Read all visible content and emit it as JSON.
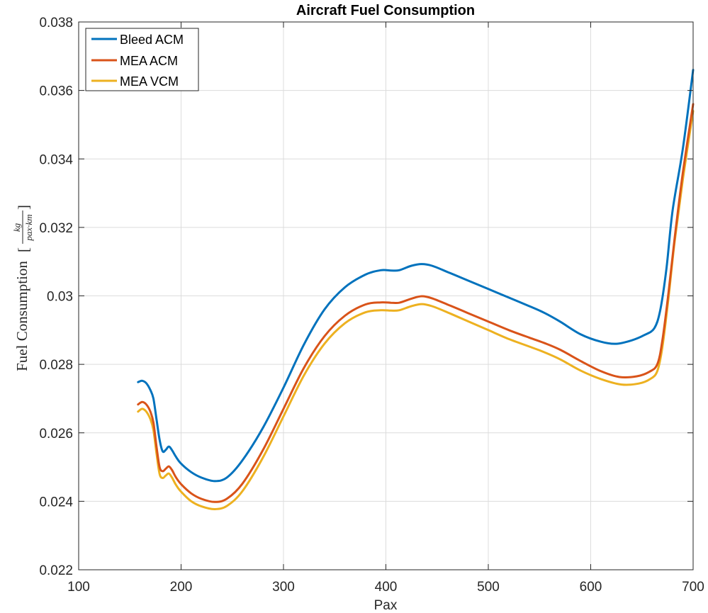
{
  "chart_data": {
    "type": "line",
    "title": "Aircraft Fuel Consumption",
    "xlabel": "Pax",
    "ylabel": {
      "text": "Fuel Consumption",
      "unit_numerator": "kg",
      "unit_denominator": "pax·km"
    },
    "xlim": [
      100,
      700
    ],
    "ylim": [
      0.022,
      0.038
    ],
    "xticks": [
      100,
      200,
      300,
      400,
      500,
      600,
      700
    ],
    "xtick_labels": [
      "100",
      "200",
      "300",
      "400",
      "500",
      "600",
      "700"
    ],
    "yticks": [
      0.022,
      0.024,
      0.026,
      0.028,
      0.03,
      0.032,
      0.034,
      0.036,
      0.038
    ],
    "ytick_labels": [
      "0.022",
      "0.024",
      "0.026",
      "0.028",
      "0.03",
      "0.032",
      "0.034",
      "0.036",
      "0.038"
    ],
    "grid": true,
    "legend_position": "top-left",
    "series": [
      {
        "name": "Bleed ACM",
        "color": "#0072BD",
        "x": [
          158,
          162,
          166,
          170,
          173,
          176,
          179,
          182,
          185,
          188,
          191,
          195,
          200,
          210,
          220,
          233,
          245,
          260,
          280,
          300,
          320,
          340,
          360,
          380,
          395,
          405,
          413,
          425,
          435,
          445,
          460,
          480,
          500,
          520,
          540,
          555,
          570,
          590,
          610,
          625,
          640,
          652,
          662,
          668,
          674,
          680,
          690,
          700
        ],
        "y": [
          0.02748,
          0.02752,
          0.02745,
          0.02725,
          0.027,
          0.0264,
          0.0258,
          0.02546,
          0.0255,
          0.0256,
          0.0255,
          0.0253,
          0.0251,
          0.02485,
          0.02469,
          0.02459,
          0.0247,
          0.0252,
          0.02615,
          0.02732,
          0.02858,
          0.0296,
          0.03025,
          0.03062,
          0.03075,
          0.03074,
          0.03075,
          0.03088,
          0.03093,
          0.03088,
          0.0307,
          0.03045,
          0.0302,
          0.02995,
          0.0297,
          0.0295,
          0.02925,
          0.02888,
          0.02866,
          0.0286,
          0.0287,
          0.02885,
          0.02905,
          0.0296,
          0.0308,
          0.0325,
          0.0343,
          0.0366
        ]
      },
      {
        "name": "MEA ACM",
        "color": "#D95319",
        "x": [
          158,
          162,
          166,
          170,
          173,
          176,
          179,
          182,
          185,
          188,
          191,
          195,
          200,
          210,
          220,
          233,
          245,
          260,
          280,
          300,
          320,
          340,
          360,
          380,
          395,
          405,
          413,
          425,
          435,
          445,
          460,
          480,
          500,
          520,
          540,
          555,
          570,
          590,
          610,
          628,
          645,
          657,
          665,
          670,
          676,
          682,
          690,
          700
        ],
        "y": [
          0.02683,
          0.0269,
          0.02683,
          0.02662,
          0.0263,
          0.0256,
          0.025,
          0.02488,
          0.02495,
          0.02502,
          0.02492,
          0.0247,
          0.0245,
          0.02423,
          0.02407,
          0.02398,
          0.02408,
          0.02452,
          0.0255,
          0.0267,
          0.0279,
          0.02882,
          0.02942,
          0.02975,
          0.02981,
          0.0298,
          0.0298,
          0.02992,
          0.02999,
          0.02993,
          0.02975,
          0.0295,
          0.02925,
          0.029,
          0.02878,
          0.02862,
          0.02843,
          0.0281,
          0.0278,
          0.02763,
          0.02765,
          0.02778,
          0.028,
          0.0287,
          0.0301,
          0.0317,
          0.0336,
          0.0356
        ]
      },
      {
        "name": "MEA VCM",
        "color": "#EDB120",
        "x": [
          158,
          162,
          166,
          170,
          173,
          176,
          179,
          182,
          185,
          188,
          191,
          195,
          200,
          210,
          220,
          233,
          245,
          260,
          280,
          300,
          320,
          340,
          360,
          380,
          395,
          405,
          413,
          425,
          435,
          445,
          460,
          480,
          500,
          520,
          540,
          555,
          570,
          590,
          610,
          630,
          647,
          658,
          665,
          670,
          676,
          682,
          690,
          700
        ],
        "y": [
          0.02662,
          0.0267,
          0.02662,
          0.0264,
          0.02608,
          0.0254,
          0.0248,
          0.02468,
          0.02475,
          0.02481,
          0.0247,
          0.02448,
          0.02428,
          0.024,
          0.02385,
          0.02377,
          0.02387,
          0.0243,
          0.02528,
          0.02648,
          0.02768,
          0.0286,
          0.0292,
          0.02952,
          0.02958,
          0.02957,
          0.02958,
          0.0297,
          0.02976,
          0.0297,
          0.02952,
          0.02926,
          0.029,
          0.02874,
          0.02852,
          0.02835,
          0.02815,
          0.02782,
          0.02757,
          0.02741,
          0.02744,
          0.02757,
          0.0278,
          0.0285,
          0.02995,
          0.0316,
          0.0334,
          0.0354
        ]
      }
    ]
  }
}
